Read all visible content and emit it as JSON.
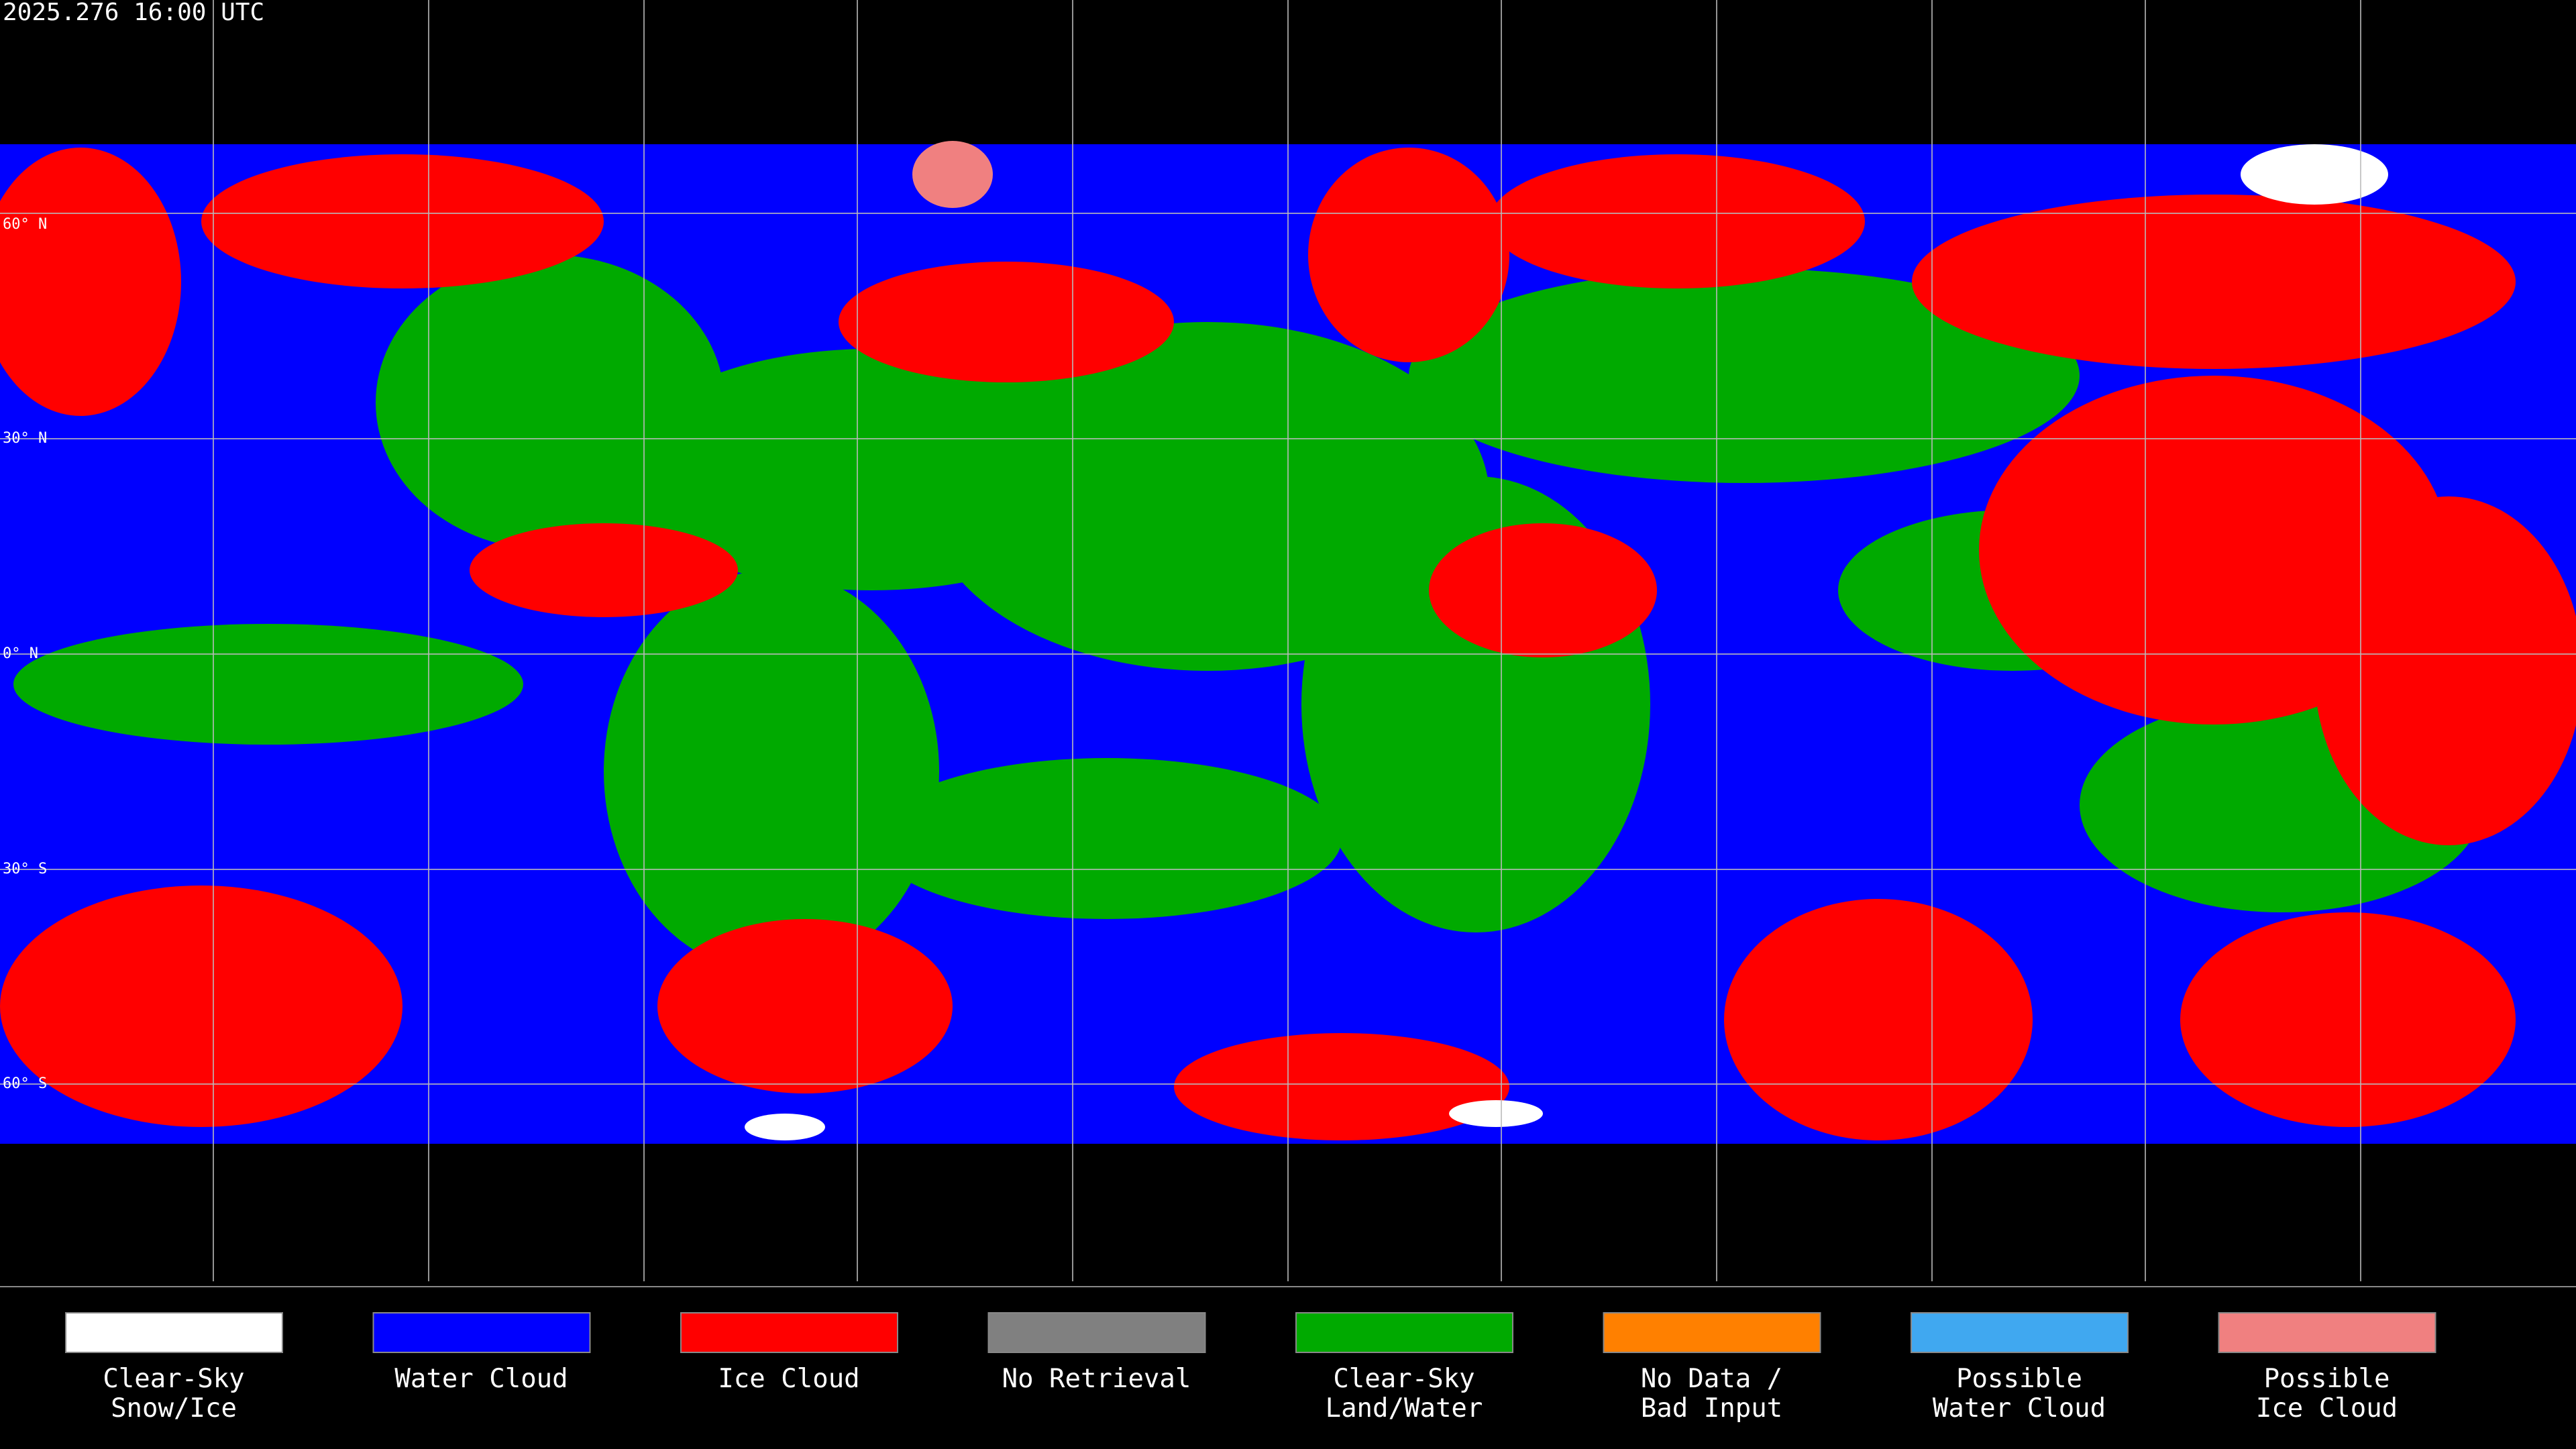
{
  "header": {
    "timestamp": "2025.276 16:00 UTC"
  },
  "map": {
    "latitude_labels": [
      "60° N",
      "30° N",
      "0° N",
      "30° S",
      "60° S"
    ]
  },
  "legend": {
    "items": [
      {
        "lines": [
          "Clear-Sky",
          "Snow/Ice"
        ],
        "color": "#ffffff"
      },
      {
        "lines": [
          "Water Cloud"
        ],
        "color": "#0000ff"
      },
      {
        "lines": [
          "Ice Cloud"
        ],
        "color": "#ff0000"
      },
      {
        "lines": [
          "No Retrieval"
        ],
        "color": "#808080"
      },
      {
        "lines": [
          "Clear-Sky",
          "Land/Water"
        ],
        "color": "#00aa00"
      },
      {
        "lines": [
          "No Data /",
          "Bad Input"
        ],
        "color": "#ff8000"
      },
      {
        "lines": [
          "Possible",
          "Water Cloud"
        ],
        "color": "#40a8f0"
      },
      {
        "lines": [
          "Possible",
          "Ice Cloud"
        ],
        "color": "#f08080"
      }
    ]
  }
}
